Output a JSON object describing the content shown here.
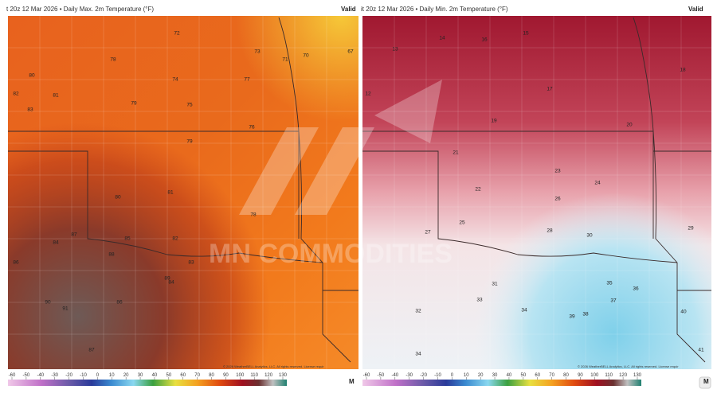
{
  "watermark": "MN COMMODITIES",
  "panels": [
    {
      "header": "t 20z 12 Mar 2026 • Daily Max. 2m Temperature (°F)",
      "valid": "Valid",
      "credit": "© 2026 WeatherBELL Analytics, LLC. All rights reserved. License requir",
      "corner": "M",
      "colorbar_ticks": [
        -60,
        -50,
        -40,
        -30,
        -20,
        -10,
        0,
        10,
        20,
        30,
        40,
        50,
        60,
        70,
        80,
        90,
        100,
        110,
        120,
        130
      ],
      "stations": [
        72,
        73,
        71,
        70,
        67,
        78,
        80,
        81,
        82,
        83,
        79,
        74,
        75,
        76,
        84,
        85,
        86,
        87,
        88,
        90,
        91,
        89,
        79,
        81,
        80,
        77,
        78,
        82,
        83,
        84,
        86,
        87
      ]
    },
    {
      "header": "it 20z 12 Mar 2026 • Daily Min. 2m Temperature (°F)",
      "valid": "Valid",
      "credit": "© 2026 WeatherBELL Analytics, LLC. All rights reserved. License requir",
      "corner": "M",
      "colorbar_ticks": [
        -60,
        -50,
        -40,
        -30,
        -20,
        -10,
        0,
        10,
        20,
        30,
        40,
        50,
        60,
        70,
        80,
        90,
        100,
        110,
        120,
        130
      ],
      "stations": [
        14,
        13,
        15,
        16,
        12,
        17,
        18,
        19,
        20,
        21,
        22,
        23,
        24,
        25,
        26,
        27,
        28,
        29,
        30,
        31,
        32,
        33,
        34,
        35,
        36,
        37,
        38,
        39,
        40,
        41,
        34
      ]
    }
  ]
}
